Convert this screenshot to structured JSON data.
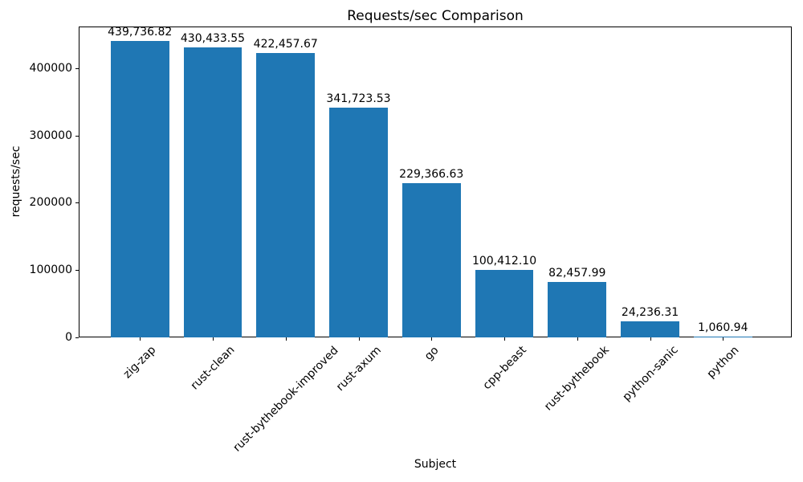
{
  "chart_data": {
    "type": "bar",
    "title": "Requests/sec Comparison",
    "xlabel": "Subject",
    "ylabel": "requests/sec",
    "categories": [
      "zig-zap",
      "rust-clean",
      "rust-bythebook-improved",
      "rust-axum",
      "go",
      "cpp-beast",
      "rust-bythebook",
      "python-sanic",
      "python"
    ],
    "values": [
      439736.82,
      430433.55,
      422457.67,
      341723.53,
      229366.63,
      100412.1,
      82457.99,
      24236.31,
      1060.94
    ],
    "value_labels": [
      "439,736.82",
      "430,433.55",
      "422,457.67",
      "341,723.53",
      "229,366.63",
      "100,412.10",
      "82,457.99",
      "24,236.31",
      "1,060.94"
    ],
    "yticks": [
      0,
      100000,
      200000,
      300000,
      400000
    ],
    "ytick_labels": [
      "0",
      "100000",
      "200000",
      "300000",
      "400000"
    ],
    "ylim": [
      0,
      461723
    ],
    "bar_color": "#1f77b4",
    "grid": false,
    "legend_position": "none"
  }
}
